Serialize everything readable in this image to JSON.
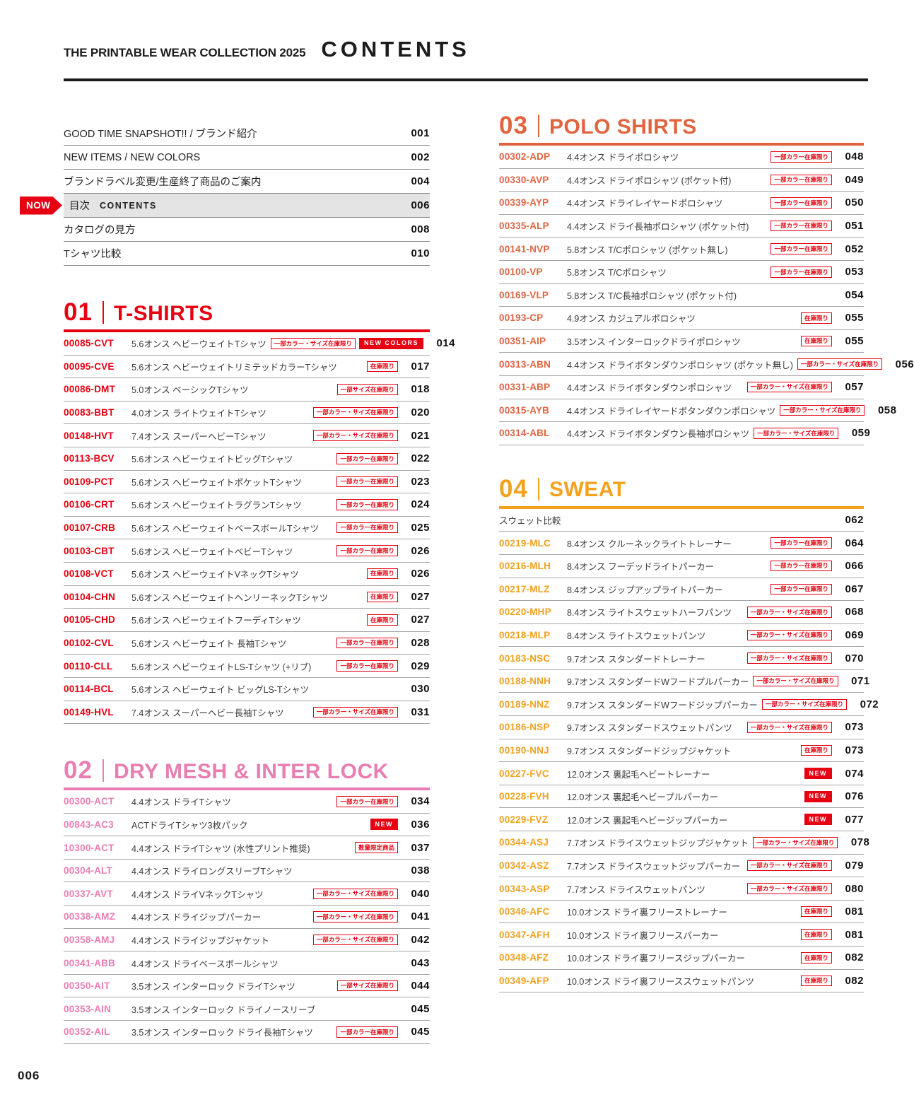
{
  "header": {
    "brand": "THE PRINTABLE WEAR COLLECTION 2025",
    "title": "CONTENTS"
  },
  "now_label": "NOW",
  "footer": {
    "page_number": "006"
  },
  "colors": {
    "badge_red": "#e60012",
    "section_01": "#e60012",
    "section_02": "#e87eb1",
    "section_03": "#e16440",
    "section_04": "#f4a11d"
  },
  "top_list": [
    {
      "label": "GOOD TIME SNAPSHOT!! / ブランド紹介",
      "page": "001"
    },
    {
      "label": "NEW ITEMS / NEW COLORS",
      "page": "002"
    },
    {
      "label": "ブランドラベル変更/生産終了商品のご案内",
      "page": "004"
    },
    {
      "label": "目次",
      "sublabel": "CONTENTS",
      "page": "006",
      "current": true
    },
    {
      "label": "カタログの見方",
      "page": "008"
    },
    {
      "label": "Tシャツ比較",
      "page": "010"
    }
  ],
  "sections": [
    {
      "number": "01",
      "title": "T-SHIRTS",
      "color": "#e60012",
      "column": "left",
      "rows": [
        {
          "code": "00085-CVT",
          "desc": "5.6オンス ヘビーウェイトTシャツ",
          "badges": [
            {
              "text": "一部カラー・サイズ在庫限り",
              "style": "outline"
            },
            {
              "text": "NEW COLORS",
              "style": "solid"
            }
          ],
          "page": "014"
        },
        {
          "code": "00095-CVE",
          "desc": "5.6オンス ヘビーウェイトリミテッドカラーTシャツ",
          "badges": [
            {
              "text": "在庫限り",
              "style": "outline"
            }
          ],
          "page": "017"
        },
        {
          "code": "00086-DMT",
          "desc": "5.0オンス ベーシックTシャツ",
          "badges": [
            {
              "text": "一部サイズ在庫限り",
              "style": "outline"
            }
          ],
          "page": "018"
        },
        {
          "code": "00083-BBT",
          "desc": "4.0オンス ライトウェイトTシャツ",
          "badges": [
            {
              "text": "一部カラー・サイズ在庫限り",
              "style": "outline"
            }
          ],
          "page": "020"
        },
        {
          "code": "00148-HVT",
          "desc": "7.4オンス スーパーヘビーTシャツ",
          "badges": [
            {
              "text": "一部カラー・サイズ在庫限り",
              "style": "outline"
            }
          ],
          "page": "021"
        },
        {
          "code": "00113-BCV",
          "desc": "5.6オンス ヘビーウェイトビッグTシャツ",
          "badges": [
            {
              "text": "一部カラー在庫限り",
              "style": "outline"
            }
          ],
          "page": "022"
        },
        {
          "code": "00109-PCT",
          "desc": "5.6オンス ヘビーウェイトポケットTシャツ",
          "badges": [
            {
              "text": "一部カラー在庫限り",
              "style": "outline"
            }
          ],
          "page": "023"
        },
        {
          "code": "00106-CRT",
          "desc": "5.6オンス ヘビーウェイトラグランTシャツ",
          "badges": [
            {
              "text": "一部カラー在庫限り",
              "style": "outline"
            }
          ],
          "page": "024"
        },
        {
          "code": "00107-CRB",
          "desc": "5.6オンス ヘビーウェイトベースボールTシャツ",
          "badges": [
            {
              "text": "一部カラー在庫限り",
              "style": "outline"
            }
          ],
          "page": "025"
        },
        {
          "code": "00103-CBT",
          "desc": "5.6オンス ヘビーウェイトベビーTシャツ",
          "badges": [
            {
              "text": "一部カラー在庫限り",
              "style": "outline"
            }
          ],
          "page": "026"
        },
        {
          "code": "00108-VCT",
          "desc": "5.6オンス ヘビーウェイトVネックTシャツ",
          "badges": [
            {
              "text": "在庫限り",
              "style": "outline"
            }
          ],
          "page": "026"
        },
        {
          "code": "00104-CHN",
          "desc": "5.6オンス ヘビーウェイトヘンリーネックTシャツ",
          "badges": [
            {
              "text": "在庫限り",
              "style": "outline"
            }
          ],
          "page": "027"
        },
        {
          "code": "00105-CHD",
          "desc": "5.6オンス ヘビーウェイトフーディTシャツ",
          "badges": [
            {
              "text": "在庫限り",
              "style": "outline"
            }
          ],
          "page": "027"
        },
        {
          "code": "00102-CVL",
          "desc": "5.6オンス ヘビーウェイト 長袖Tシャツ",
          "badges": [
            {
              "text": "一部カラー在庫限り",
              "style": "outline"
            }
          ],
          "page": "028"
        },
        {
          "code": "00110-CLL",
          "desc": "5.6オンス ヘビーウェイトLS-Tシャツ (+リブ)",
          "badges": [
            {
              "text": "一部カラー在庫限り",
              "style": "outline"
            }
          ],
          "page": "029"
        },
        {
          "code": "00114-BCL",
          "desc": "5.6オンス ヘビーウェイト ビッグLS-Tシャツ",
          "badges": [],
          "page": "030"
        },
        {
          "code": "00149-HVL",
          "desc": "7.4オンス スーパーヘビー長袖Tシャツ",
          "badges": [
            {
              "text": "一部カラー・サイズ在庫限り",
              "style": "outline"
            }
          ],
          "page": "031"
        }
      ]
    },
    {
      "number": "02",
      "title": "DRY MESH & INTER LOCK",
      "color": "#e87eb1",
      "column": "left",
      "rows": [
        {
          "code": "00300-ACT",
          "desc": "4.4オンス ドライTシャツ",
          "badges": [
            {
              "text": "一部カラー在庫限り",
              "style": "outline"
            }
          ],
          "page": "034"
        },
        {
          "code": "00843-AC3",
          "desc": "ACTドライTシャツ3枚パック",
          "badges": [
            {
              "text": "NEW",
              "style": "solid"
            }
          ],
          "page": "036"
        },
        {
          "code": "10300-ACT",
          "desc": "4.4オンス ドライTシャツ (水性プリント推奨)",
          "badges": [
            {
              "text": "数量限定商品",
              "style": "outline"
            }
          ],
          "page": "037"
        },
        {
          "code": "00304-ALT",
          "desc": "4.4オンス ドライロングスリーブTシャツ",
          "badges": [],
          "page": "038"
        },
        {
          "code": "00337-AVT",
          "desc": "4.4オンス ドライVネックTシャツ",
          "badges": [
            {
              "text": "一部カラー・サイズ在庫限り",
              "style": "outline"
            }
          ],
          "page": "040"
        },
        {
          "code": "00338-AMZ",
          "desc": "4.4オンス ドライジップパーカー",
          "badges": [
            {
              "text": "一部カラー・サイズ在庫限り",
              "style": "outline"
            }
          ],
          "page": "041"
        },
        {
          "code": "00358-AMJ",
          "desc": "4.4オンス ドライジップジャケット",
          "badges": [
            {
              "text": "一部カラー・サイズ在庫限り",
              "style": "outline"
            }
          ],
          "page": "042"
        },
        {
          "code": "00341-ABB",
          "desc": "4.4オンス ドライベースボールシャツ",
          "badges": [],
          "page": "043"
        },
        {
          "code": "00350-AIT",
          "desc": "3.5オンス インターロック ドライTシャツ",
          "badges": [
            {
              "text": "一部サイズ在庫限り",
              "style": "outline"
            }
          ],
          "page": "044"
        },
        {
          "code": "00353-AIN",
          "desc": "3.5オンス インターロック ドライノースリーブ",
          "badges": [],
          "page": "045"
        },
        {
          "code": "00352-AIL",
          "desc": "3.5オンス インターロック ドライ長袖Tシャツ",
          "badges": [
            {
              "text": "一部カラー在庫限り",
              "style": "outline"
            }
          ],
          "page": "045"
        }
      ]
    },
    {
      "number": "03",
      "title": "POLO SHIRTS",
      "color": "#e16440",
      "column": "right",
      "rows": [
        {
          "code": "00302-ADP",
          "desc": "4.4オンス ドライポロシャツ",
          "badges": [
            {
              "text": "一部カラー在庫限り",
              "style": "outline"
            }
          ],
          "page": "048"
        },
        {
          "code": "00330-AVP",
          "desc": "4.4オンス ドライポロシャツ (ポケット付)",
          "badges": [
            {
              "text": "一部カラー在庫限り",
              "style": "outline"
            }
          ],
          "page": "049"
        },
        {
          "code": "00339-AYP",
          "desc": "4.4オンス ドライレイヤードポロシャツ",
          "badges": [
            {
              "text": "一部カラー在庫限り",
              "style": "outline"
            }
          ],
          "page": "050"
        },
        {
          "code": "00335-ALP",
          "desc": "4.4オンス ドライ長袖ポロシャツ (ポケット付)",
          "badges": [
            {
              "text": "一部カラー在庫限り",
              "style": "outline"
            }
          ],
          "page": "051"
        },
        {
          "code": "00141-NVP",
          "desc": "5.8オンス T/Cポロシャツ (ポケット無し)",
          "badges": [
            {
              "text": "一部カラー在庫限り",
              "style": "outline"
            }
          ],
          "page": "052"
        },
        {
          "code": "00100-VP",
          "desc": "5.8オンス T/Cポロシャツ",
          "badges": [
            {
              "text": "一部カラー在庫限り",
              "style": "outline"
            }
          ],
          "page": "053"
        },
        {
          "code": "00169-VLP",
          "desc": "5.8オンス T/C長袖ポロシャツ (ポケット付)",
          "badges": [],
          "page": "054"
        },
        {
          "code": "00193-CP",
          "desc": "4.9オンス カジュアルポロシャツ",
          "badges": [
            {
              "text": "在庫限り",
              "style": "outline"
            }
          ],
          "page": "055"
        },
        {
          "code": "00351-AIP",
          "desc": "3.5オンス インターロックドライポロシャツ",
          "badges": [
            {
              "text": "在庫限り",
              "style": "outline"
            }
          ],
          "page": "055"
        },
        {
          "code": "00313-ABN",
          "desc": "4.4オンス ドライボタンダウンポロシャツ (ポケット無し)",
          "badges": [
            {
              "text": "一部カラー・サイズ在庫限り",
              "style": "outline"
            }
          ],
          "page": "056"
        },
        {
          "code": "00331-ABP",
          "desc": "4.4オンス ドライボタンダウンポロシャツ",
          "badges": [
            {
              "text": "一部カラー・サイズ在庫限り",
              "style": "outline"
            }
          ],
          "page": "057"
        },
        {
          "code": "00315-AYB",
          "desc": "4.4オンス ドライレイヤードボタンダウンポロシャツ",
          "badges": [
            {
              "text": "一部カラー・サイズ在庫限り",
              "style": "outline"
            }
          ],
          "page": "058"
        },
        {
          "code": "00314-ABL",
          "desc": "4.4オンス ドライボタンダウン長袖ポロシャツ",
          "badges": [
            {
              "text": "一部カラー・サイズ在庫限り",
              "style": "outline"
            }
          ],
          "page": "059"
        }
      ]
    },
    {
      "number": "04",
      "title": "SWEAT",
      "color": "#f4a11d",
      "column": "right",
      "rows": [
        {
          "code": "",
          "desc": "スウェット比較",
          "badges": [],
          "page": "062"
        },
        {
          "code": "00219-MLC",
          "desc": "8.4オンス クルーネックライトトレーナー",
          "badges": [
            {
              "text": "一部カラー在庫限り",
              "style": "outline"
            }
          ],
          "page": "064"
        },
        {
          "code": "00216-MLH",
          "desc": "8.4オンス フーデッドライトパーカー",
          "badges": [
            {
              "text": "一部カラー在庫限り",
              "style": "outline"
            }
          ],
          "page": "066"
        },
        {
          "code": "00217-MLZ",
          "desc": "8.4オンス ジップアップライトパーカー",
          "badges": [
            {
              "text": "一部カラー在庫限り",
              "style": "outline"
            }
          ],
          "page": "067"
        },
        {
          "code": "00220-MHP",
          "desc": "8.4オンス ライトスウェットハーフパンツ",
          "badges": [
            {
              "text": "一部カラー・サイズ在庫限り",
              "style": "outline"
            }
          ],
          "page": "068"
        },
        {
          "code": "00218-MLP",
          "desc": "8.4オンス ライトスウェットパンツ",
          "badges": [
            {
              "text": "一部カラー・サイズ在庫限り",
              "style": "outline"
            }
          ],
          "page": "069"
        },
        {
          "code": "00183-NSC",
          "desc": "9.7オンス スタンダードトレーナー",
          "badges": [
            {
              "text": "一部カラー・サイズ在庫限り",
              "style": "outline"
            }
          ],
          "page": "070"
        },
        {
          "code": "00188-NNH",
          "desc": "9.7オンス スタンダードWフードプルパーカー",
          "badges": [
            {
              "text": "一部カラー・サイズ在庫限り",
              "style": "outline"
            }
          ],
          "page": "071"
        },
        {
          "code": "00189-NNZ",
          "desc": "9.7オンス スタンダードWフードジップパーカー",
          "badges": [
            {
              "text": "一部カラー・サイズ在庫限り",
              "style": "outline"
            }
          ],
          "page": "072"
        },
        {
          "code": "00186-NSP",
          "desc": "9.7オンス スタンダードスウェットパンツ",
          "badges": [
            {
              "text": "一部カラー・サイズ在庫限り",
              "style": "outline"
            }
          ],
          "page": "073"
        },
        {
          "code": "00190-NNJ",
          "desc": "9.7オンス スタンダードジップジャケット",
          "badges": [
            {
              "text": "在庫限り",
              "style": "outline"
            }
          ],
          "page": "073"
        },
        {
          "code": "00227-FVC",
          "desc": "12.0オンス 裏起毛ヘビートレーナー",
          "badges": [
            {
              "text": "NEW",
              "style": "solid"
            }
          ],
          "page": "074"
        },
        {
          "code": "00228-FVH",
          "desc": "12.0オンス 裏起毛ヘビープルパーカー",
          "badges": [
            {
              "text": "NEW",
              "style": "solid"
            }
          ],
          "page": "076"
        },
        {
          "code": "00229-FVZ",
          "desc": "12.0オンス 裏起毛ヘビージップパーカー",
          "badges": [
            {
              "text": "NEW",
              "style": "solid"
            }
          ],
          "page": "077"
        },
        {
          "code": "00344-ASJ",
          "desc": "7.7オンス ドライスウェットジップジャケット",
          "badges": [
            {
              "text": "一部カラー・サイズ在庫限り",
              "style": "outline"
            }
          ],
          "page": "078"
        },
        {
          "code": "00342-ASZ",
          "desc": "7.7オンス ドライスウェットジップパーカー",
          "badges": [
            {
              "text": "一部カラー・サイズ在庫限り",
              "style": "outline"
            }
          ],
          "page": "079"
        },
        {
          "code": "00343-ASP",
          "desc": "7.7オンス ドライスウェットパンツ",
          "badges": [
            {
              "text": "一部カラー・サイズ在庫限り",
              "style": "outline"
            }
          ],
          "page": "080"
        },
        {
          "code": "00346-AFC",
          "desc": "10.0オンス ドライ裏フリーストレーナー",
          "badges": [
            {
              "text": "在庫限り",
              "style": "outline"
            }
          ],
          "page": "081"
        },
        {
          "code": "00347-AFH",
          "desc": "10.0オンス ドライ裏フリースパーカー",
          "badges": [
            {
              "text": "在庫限り",
              "style": "outline"
            }
          ],
          "page": "081"
        },
        {
          "code": "00348-AFZ",
          "desc": "10.0オンス ドライ裏フリースジップパーカー",
          "badges": [
            {
              "text": "在庫限り",
              "style": "outline"
            }
          ],
          "page": "082"
        },
        {
          "code": "00349-AFP",
          "desc": "10.0オンス ドライ裏フリーススウェットパンツ",
          "badges": [
            {
              "text": "在庫限り",
              "style": "outline"
            }
          ],
          "page": "082"
        }
      ]
    }
  ]
}
